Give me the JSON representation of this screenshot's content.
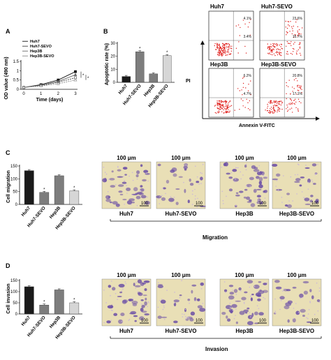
{
  "colors": {
    "black_bar": "#1a1a1a",
    "gray_bar": "#7d7d7d",
    "light_bar": "#d6d6d6",
    "flow_dot": "#e0201d",
    "stain_purple": "#6b4fa6",
    "bg_yellow": "#e9dfb6"
  },
  "panels": {
    "A": "A",
    "B": "B",
    "C": "C",
    "D": "D"
  },
  "chart_data": [
    {
      "type": "line",
      "panel": "A",
      "xlabel": "Time (days)",
      "ylabel": "OD value (490 nm)",
      "x": [
        0,
        1,
        2,
        3
      ],
      "xlim": [
        0,
        3
      ],
      "ylim": [
        0,
        1.5
      ],
      "yticks": [
        0.0,
        0.5,
        1.0,
        1.5
      ],
      "series": [
        {
          "name": "Huh7",
          "values": [
            0.1,
            0.25,
            0.5,
            0.95
          ],
          "marker": "square",
          "color": "#111111"
        },
        {
          "name": "Huh7-SEVO",
          "values": [
            0.1,
            0.2,
            0.38,
            0.62
          ],
          "marker": "square-open",
          "color": "#444444"
        },
        {
          "name": "Hep3B",
          "values": [
            0.1,
            0.22,
            0.42,
            0.78
          ],
          "marker": "triangle",
          "color": "#666666"
        },
        {
          "name": "Hep3B-SEVO",
          "values": [
            0.1,
            0.18,
            0.3,
            0.5
          ],
          "marker": "triangle-open",
          "color": "#888888"
        }
      ],
      "significance": [
        "*",
        "*"
      ]
    },
    {
      "type": "bar",
      "panel": "B",
      "ylabel": "Apoptotic rate (%)",
      "categories": [
        "Huh7",
        "Huh7-SEVO",
        "Hep3B",
        "Hep3B-SEVO"
      ],
      "values": [
        4.5,
        23.5,
        6.5,
        20.5
      ],
      "ylim": [
        0,
        30
      ],
      "yticks": [
        0,
        10,
        20,
        30
      ],
      "bar_colors": [
        "#1a1a1a",
        "#7d7d7d",
        "#7d7d7d",
        "#d6d6d6"
      ],
      "significance": [
        "",
        "*",
        "",
        "*"
      ]
    },
    {
      "type": "bar",
      "panel": "C",
      "ylabel": "Cell migration",
      "categories": [
        "Huh7",
        "Huh7-SEVO",
        "Hep3B",
        "Hep3B-SEVO"
      ],
      "values": [
        132,
        47,
        112,
        53
      ],
      "ylim": [
        0,
        150
      ],
      "yticks": [
        0,
        50,
        100,
        150
      ],
      "bar_colors": [
        "#1a1a1a",
        "#7d7d7d",
        "#7d7d7d",
        "#d6d6d6"
      ],
      "significance": [
        "",
        "*",
        "",
        "*"
      ]
    },
    {
      "type": "bar",
      "panel": "D",
      "ylabel": "Cell invasion",
      "categories": [
        "Huh7",
        "Huh7-SEVO",
        "Hep3B",
        "Hep3B-SEVO"
      ],
      "values": [
        122,
        40,
        108,
        50
      ],
      "ylim": [
        0,
        150
      ],
      "yticks": [
        0,
        50,
        100,
        150
      ],
      "bar_colors": [
        "#1a1a1a",
        "#7d7d7d",
        "#7d7d7d",
        "#d6d6d6"
      ],
      "significance": [
        "",
        "*",
        "",
        "*"
      ]
    }
  ],
  "flow": {
    "y_axis": "PI",
    "x_axis": "Annexin V-FITC",
    "plots": [
      {
        "title": "Huh7",
        "ur": "4.1%",
        "lr": "3.4%"
      },
      {
        "title": "Huh7-SEVO",
        "ur": "23.6%",
        "lr": "16.7%"
      },
      {
        "title": "Hep3B",
        "ur": "6.2%",
        "lr": "4.7%"
      },
      {
        "title": "Hep3B-SEVO",
        "ur": "20.8%",
        "lr": "17.1%"
      }
    ]
  },
  "migration": {
    "caption": "Migration",
    "scale_label": "100 μm",
    "scalebar_text": "100",
    "images": [
      "Huh7",
      "Huh7-SEVO",
      "Hep3B",
      "Hep3B-SEVO"
    ]
  },
  "invasion": {
    "caption": "Invasion",
    "scale_label": "100 μm",
    "scalebar_text": "100",
    "images": [
      "Huh7",
      "Huh7-SEVO",
      "Hep3B",
      "Hep3B-SEVO"
    ]
  }
}
